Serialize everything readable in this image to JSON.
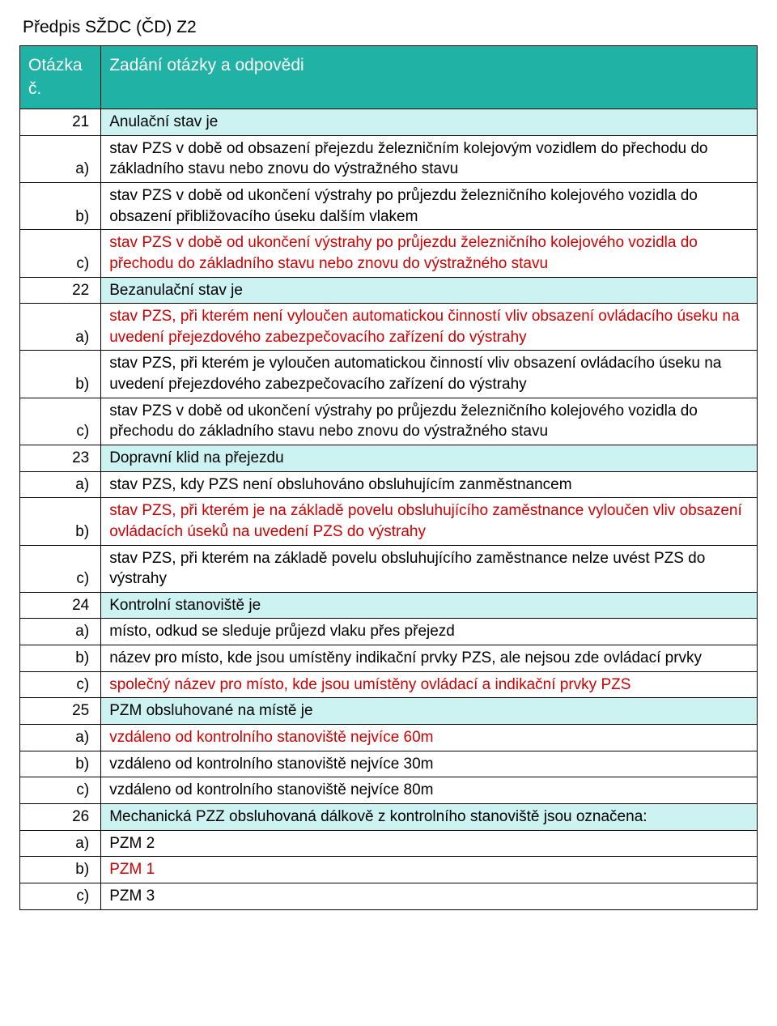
{
  "colors": {
    "header_bg": "#21b2a6",
    "header_fg": "#ffffff",
    "question_bg": "#ccf2f2",
    "border": "#000000",
    "red": "#d00000",
    "black": "#000000",
    "page_bg": "#ffffff"
  },
  "title": "Předpis SŽDC (ČD) Z2",
  "header": {
    "num": "Otázka č.",
    "body": "Zadání otázky a odpovědi"
  },
  "rows": [
    {
      "num": "21",
      "type": "question",
      "text": "Anulační stav je"
    },
    {
      "num": "a)",
      "type": "answer",
      "color": "black",
      "text": "stav PZS v době od obsazení přejezdu železničním kolejovým vozidlem do přechodu do základního stavu nebo znovu do výstražného stavu"
    },
    {
      "num": "b)",
      "type": "answer",
      "color": "black",
      "text": "stav PZS v době od ukončení výstrahy po průjezdu železničního kolejového vozidla do obsazení přibližovacího úseku dalším vlakem"
    },
    {
      "num": "c)",
      "type": "answer",
      "color": "red",
      "text": "stav PZS v době od ukončení výstrahy po průjezdu železničního kolejového vozidla do přechodu do základního stavu nebo znovu do výstražného stavu"
    },
    {
      "num": "22",
      "type": "question",
      "text": "Bezanulační stav je"
    },
    {
      "num": "a)",
      "type": "answer",
      "color": "red",
      "text": "stav PZS, při kterém není vyloučen automatickou činností vliv obsazení ovládacího úseku na uvedení přejezdového zabezpečovacího zařízení do výstrahy"
    },
    {
      "num": "b)",
      "type": "answer",
      "color": "black",
      "text": "stav PZS, při kterém je vyloučen automatickou činností vliv obsazení ovládacího úseku na uvedení přejezdového zabezpečovacího zařízení do výstrahy"
    },
    {
      "num": "c)",
      "type": "answer",
      "color": "black",
      "text": "stav PZS v době od ukončení výstrahy po průjezdu železničního kolejového vozidla do přechodu do základního stavu nebo znovu do výstražného stavu"
    },
    {
      "num": "23",
      "type": "question",
      "text": "Dopravní klid na přejezdu"
    },
    {
      "num": "a)",
      "type": "answer",
      "color": "black",
      "text": "stav PZS, kdy PZS není obsluhováno obsluhujícím zanměstnancem"
    },
    {
      "num": "b)",
      "type": "answer",
      "color": "red",
      "text": "stav PZS, při kterém je na základě povelu obsluhujícího zaměstnance vyloučen vliv obsazení ovládacích úseků na uvedení PZS do výstrahy"
    },
    {
      "num": "c)",
      "type": "answer",
      "color": "black",
      "text": "stav PZS, při kterém na základě povelu obsluhujícího zaměstnance nelze uvést PZS do výstrahy"
    },
    {
      "num": "24",
      "type": "question",
      "text": "Kontrolní stanoviště je"
    },
    {
      "num": "a)",
      "type": "answer",
      "color": "black",
      "text": "místo, odkud se sleduje průjezd vlaku přes přejezd"
    },
    {
      "num": "b)",
      "type": "answer",
      "color": "black",
      "text": "název pro místo, kde jsou umístěny indikační prvky PZS, ale nejsou zde ovládací prvky"
    },
    {
      "num": "c)",
      "type": "answer",
      "color": "red",
      "text": "společný název pro místo, kde jsou umístěny ovládací a indikační prvky PZS"
    },
    {
      "num": "25",
      "type": "question",
      "text": "PZM obsluhované na místě je"
    },
    {
      "num": "a)",
      "type": "answer",
      "color": "red",
      "text": "vzdáleno od kontrolního stanoviště nejvíce 60m"
    },
    {
      "num": "b)",
      "type": "answer",
      "color": "black",
      "text": "vzdáleno od kontrolního stanoviště nejvíce 30m"
    },
    {
      "num": "c)",
      "type": "answer",
      "color": "black",
      "text": "vzdáleno od kontrolního stanoviště nejvíce 80m"
    },
    {
      "num": "26",
      "type": "question",
      "text": "Mechanická PZZ obsluhovaná dálkově z kontrolního stanoviště jsou označena:"
    },
    {
      "num": "a)",
      "type": "answer",
      "color": "black",
      "text": "PZM 2"
    },
    {
      "num": "b)",
      "type": "answer",
      "color": "red",
      "text": "PZM 1"
    },
    {
      "num": "c)",
      "type": "answer",
      "color": "black",
      "text": "PZM 3"
    }
  ]
}
